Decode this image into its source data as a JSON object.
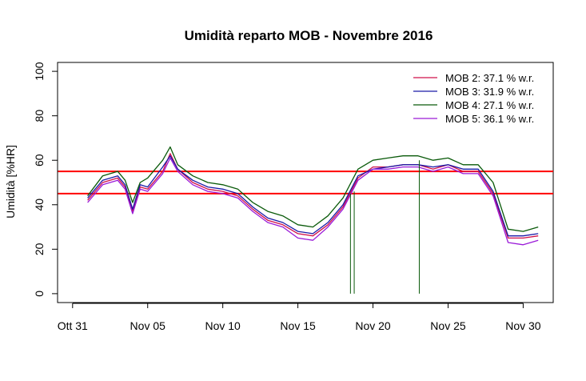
{
  "chart_data": {
    "type": "line",
    "title": "Umidità reparto MOB - Novembre 2016",
    "xlabel": "",
    "ylabel": "Umidità [%HR]",
    "xlim": [
      "2016-10-30",
      "2016-12-02"
    ],
    "ylim": [
      -4,
      104
    ],
    "x_ticks": [
      {
        "date": "2016-10-31",
        "label": "Ott 31"
      },
      {
        "date": "2016-11-05",
        "label": "Nov 05"
      },
      {
        "date": "2016-11-10",
        "label": "Nov 10"
      },
      {
        "date": "2016-11-15",
        "label": "Nov 15"
      },
      {
        "date": "2016-11-20",
        "label": "Nov 20"
      },
      {
        "date": "2016-11-25",
        "label": "Nov 25"
      },
      {
        "date": "2016-11-30",
        "label": "Nov 30"
      }
    ],
    "y_ticks": [
      0,
      20,
      40,
      60,
      80,
      100
    ],
    "grid": false,
    "legend_position": "top-right",
    "reference_lines": [
      {
        "y": 55,
        "color": "#ff0000"
      },
      {
        "y": 45,
        "color": "#ff0000"
      }
    ],
    "series": [
      {
        "name": "MOB 2:  37.1 % w.r.",
        "color": "#d0104a",
        "x": [
          "2016-11-01",
          "2016-11-02",
          "2016-11-03",
          "2016-11-03 12:00",
          "2016-11-04",
          "2016-11-04 12:00",
          "2016-11-05",
          "2016-11-06",
          "2016-11-06 12:00",
          "2016-11-07",
          "2016-11-08",
          "2016-11-09",
          "2016-11-10",
          "2016-11-11",
          "2016-11-12",
          "2016-11-13",
          "2016-11-14",
          "2016-11-15",
          "2016-11-16",
          "2016-11-17",
          "2016-11-18",
          "2016-11-19",
          "2016-11-20",
          "2016-11-21",
          "2016-11-22",
          "2016-11-23",
          "2016-11-24",
          "2016-11-25",
          "2016-11-26",
          "2016-11-27",
          "2016-11-28",
          "2016-11-29",
          "2016-11-30",
          "2016-12-01"
        ],
        "y": [
          42,
          50,
          52,
          48,
          37,
          48,
          47,
          55,
          63,
          56,
          50,
          47,
          46,
          44,
          38,
          33,
          31,
          27,
          26,
          31,
          39,
          52,
          57,
          57,
          58,
          58,
          56,
          58,
          55,
          55,
          45,
          25,
          25,
          26
        ]
      },
      {
        "name": "MOB 3:  31.9 % w.r.",
        "color": "#1a1aa8",
        "x": [
          "2016-11-01",
          "2016-11-02",
          "2016-11-03",
          "2016-11-03 12:00",
          "2016-11-04",
          "2016-11-04 12:00",
          "2016-11-05",
          "2016-11-06",
          "2016-11-06 12:00",
          "2016-11-07",
          "2016-11-08",
          "2016-11-09",
          "2016-11-10",
          "2016-11-11",
          "2016-11-12",
          "2016-11-13",
          "2016-11-14",
          "2016-11-15",
          "2016-11-16",
          "2016-11-17",
          "2016-11-18",
          "2016-11-19",
          "2016-11-20",
          "2016-11-21",
          "2016-11-22",
          "2016-11-23",
          "2016-11-24",
          "2016-11-25",
          "2016-11-26",
          "2016-11-27",
          "2016-11-28",
          "2016-11-29",
          "2016-11-30",
          "2016-12-01"
        ],
        "y": [
          43,
          51,
          53,
          49,
          38,
          49,
          48,
          57,
          62,
          56,
          51,
          48,
          47,
          45,
          39,
          34,
          32,
          28,
          27,
          32,
          40,
          53,
          56,
          57,
          58,
          58,
          57,
          58,
          56,
          56,
          46,
          26,
          26,
          27
        ]
      },
      {
        "name": "MOB 4:  27.1 % w.r.",
        "color": "#0a5a0a",
        "x": [
          "2016-11-01",
          "2016-11-02",
          "2016-11-03",
          "2016-11-03 12:00",
          "2016-11-04",
          "2016-11-04 12:00",
          "2016-11-05",
          "2016-11-06",
          "2016-11-06 12:00",
          "2016-11-07",
          "2016-11-08",
          "2016-11-09",
          "2016-11-10",
          "2016-11-11",
          "2016-11-12",
          "2016-11-13",
          "2016-11-14",
          "2016-11-15",
          "2016-11-16",
          "2016-11-17",
          "2016-11-18",
          "2016-11-19",
          "2016-11-20",
          "2016-11-21",
          "2016-11-22",
          "2016-11-23",
          "2016-11-24",
          "2016-11-25",
          "2016-11-26",
          "2016-11-27",
          "2016-11-28",
          "2016-11-29",
          "2016-11-30",
          "2016-12-01"
        ],
        "y": [
          44,
          53,
          55,
          51,
          41,
          50,
          52,
          60,
          66,
          58,
          53,
          50,
          49,
          47,
          41,
          37,
          35,
          31,
          30,
          35,
          43,
          56,
          60,
          61,
          62,
          62,
          60,
          61,
          58,
          58,
          50,
          29,
          28,
          30
        ]
      },
      {
        "name": "MOB 5:  36.1 % w.r.",
        "color": "#9a1ad8",
        "x": [
          "2016-11-01",
          "2016-11-02",
          "2016-11-03",
          "2016-11-03 12:00",
          "2016-11-04",
          "2016-11-04 12:00",
          "2016-11-05",
          "2016-11-06",
          "2016-11-06 12:00",
          "2016-11-07",
          "2016-11-08",
          "2016-11-09",
          "2016-11-10",
          "2016-11-11",
          "2016-11-12",
          "2016-11-13",
          "2016-11-14",
          "2016-11-15",
          "2016-11-16",
          "2016-11-17",
          "2016-11-18",
          "2016-11-19",
          "2016-11-20",
          "2016-11-21",
          "2016-11-22",
          "2016-11-23",
          "2016-11-24",
          "2016-11-25",
          "2016-11-26",
          "2016-11-27",
          "2016-11-28",
          "2016-11-29",
          "2016-11-30",
          "2016-12-01"
        ],
        "y": [
          41,
          49,
          51,
          47,
          36,
          47,
          46,
          54,
          61,
          55,
          49,
          46,
          45,
          43,
          37,
          32,
          30,
          25,
          24,
          30,
          38,
          51,
          56,
          56,
          57,
          57,
          55,
          57,
          54,
          54,
          44,
          23,
          22,
          24
        ]
      }
    ],
    "spikes": [
      {
        "series": "MOB 4:  27.1 % w.r.",
        "x": "2016-11-18 12:00",
        "y_from": 45,
        "y_to": 0
      },
      {
        "series": "MOB 4:  27.1 % w.r.",
        "x": "2016-11-18 18:00",
        "y_from": 46,
        "y_to": 0
      },
      {
        "series": "MOB 4:  27.1 % w.r.",
        "x": "2016-11-23 02:00",
        "y_from": 60,
        "y_to": 0
      }
    ]
  }
}
